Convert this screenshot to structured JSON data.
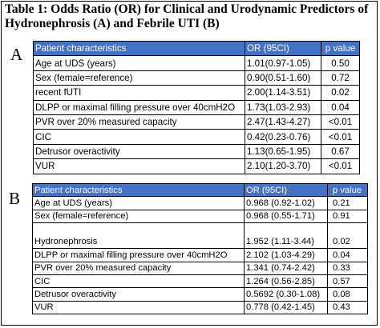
{
  "title_line1": "Table 1: Odds Ratio (OR) for Clinical and Urodynamic Predictors of",
  "title_line2": "Hydronephrosis (A) and Febrile UTI (B)",
  "panel_a": {
    "letter": "A",
    "headers": [
      "Patient characteristics",
      "OR (95CI)",
      "p value"
    ],
    "rows": [
      [
        "Age at UDS (years)",
        "1.01(0.97-1.05)",
        "0.50"
      ],
      [
        "Sex (female=reference)",
        "0.90(0.51-1.60)",
        "0.72"
      ],
      [
        "recent fUTI",
        "2.00(1.14-3.51)",
        "0.02"
      ],
      [
        "DLPP or maximal filling pressure over 40cmH2O",
        "1.73(1.03-2.93)",
        "0.04"
      ],
      [
        "PVR over 20% measured capacity",
        "2.47(1.43-4.27)",
        "<0.01"
      ],
      [
        "CIC",
        "0.42(0.23-0.76)",
        "<0.01"
      ],
      [
        "Detrusor overactivity",
        "1.13(0.65-1.95)",
        "0.67"
      ],
      [
        "VUR",
        "2.10(1.20-3.70)",
        "<0.01"
      ]
    ]
  },
  "panel_b": {
    "letter": "B",
    "headers": [
      "Patient characteristics",
      "OR (95CI)",
      "p value"
    ],
    "rows": [
      [
        "Age at UDS (years)",
        "0.968 (0.92-1.02)",
        "0.21"
      ],
      [
        "Sex (female=reference)",
        "0.968 (0.55-1.71)",
        "0.91"
      ],
      [
        "Hydronephrosis",
        "1.952 (1.11-3.44)",
        "0.02"
      ],
      [
        "DLPP or maximal filling pressure over 40cmH2O",
        "2.102 (1.03-4.29)",
        "0.04"
      ],
      [
        "PVR over 20% measured capacity",
        "1.341 (0.74-2.42)",
        "0.33"
      ],
      [
        "CIC",
        "1.264 (0.56-2.85)",
        "0.57"
      ],
      [
        "Detrusor overactivity",
        "0.5692 (0.30-1.08)",
        "0.08"
      ],
      [
        "VUR",
        "0.778 (0.42-1.45)",
        "0.43"
      ]
    ]
  }
}
